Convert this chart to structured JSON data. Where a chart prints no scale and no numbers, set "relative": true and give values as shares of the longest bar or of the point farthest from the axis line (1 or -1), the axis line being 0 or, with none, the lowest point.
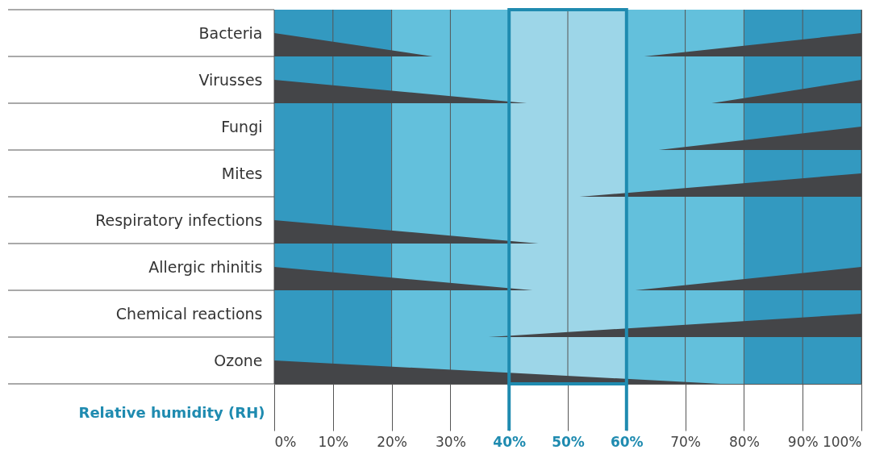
{
  "chart_data": [
    {
      "type": "area",
      "ylabel": "Bacteria",
      "relative": true,
      "x": [
        0,
        27,
        63,
        100
      ],
      "values": [
        1,
        0,
        0,
        1
      ],
      "color": "#444548",
      "xlim": [
        0,
        100
      ],
      "xticks": [
        {
          "value": 0,
          "label": null
        },
        {
          "value": 10,
          "label": null
        },
        {
          "value": 20,
          "label": null
        },
        {
          "value": 30,
          "label": null
        },
        {
          "value": 40,
          "label": null
        },
        {
          "value": 50,
          "label": null
        },
        {
          "value": 60,
          "label": null
        },
        {
          "value": 70,
          "label": null
        },
        {
          "value": 80,
          "label": null
        },
        {
          "value": 90,
          "label": null
        },
        {
          "value": 100,
          "label": null
        }
      ],
      "grid": "x",
      "tick_labels": false,
      "bands": [
        {
          "axis": "x",
          "from": 0,
          "to": 20,
          "color": "#3399c0"
        },
        {
          "axis": "x",
          "from": 20,
          "to": 40,
          "color": "#63c0dc"
        },
        {
          "axis": "x",
          "from": 40,
          "to": 60,
          "color": "#9dd6e8"
        },
        {
          "axis": "x",
          "from": 60,
          "to": 80,
          "color": "#63c0dc"
        },
        {
          "axis": "x",
          "from": 80,
          "to": 100,
          "color": "#3399c0"
        }
      ]
    },
    {
      "type": "area",
      "ylabel": "Virusses",
      "relative": true,
      "x": [
        0,
        43,
        74.5,
        100
      ],
      "values": [
        1,
        0,
        0,
        1
      ],
      "color": "#444548",
      "xlim": [
        0,
        100
      ],
      "xticks": [
        {
          "value": 0,
          "label": null
        },
        {
          "value": 10,
          "label": null
        },
        {
          "value": 20,
          "label": null
        },
        {
          "value": 30,
          "label": null
        },
        {
          "value": 40,
          "label": null
        },
        {
          "value": 50,
          "label": null
        },
        {
          "value": 60,
          "label": null
        },
        {
          "value": 70,
          "label": null
        },
        {
          "value": 80,
          "label": null
        },
        {
          "value": 90,
          "label": null
        },
        {
          "value": 100,
          "label": null
        }
      ],
      "grid": "x",
      "tick_labels": false,
      "bands": [
        {
          "axis": "x",
          "from": 0,
          "to": 20,
          "color": "#3399c0"
        },
        {
          "axis": "x",
          "from": 20,
          "to": 40,
          "color": "#63c0dc"
        },
        {
          "axis": "x",
          "from": 40,
          "to": 60,
          "color": "#9dd6e8"
        },
        {
          "axis": "x",
          "from": 60,
          "to": 80,
          "color": "#63c0dc"
        },
        {
          "axis": "x",
          "from": 80,
          "to": 100,
          "color": "#3399c0"
        }
      ]
    },
    {
      "type": "area",
      "ylabel": "Fungi",
      "relative": true,
      "x": [
        0,
        65.5,
        100
      ],
      "values": [
        0,
        0,
        1
      ],
      "color": "#444548",
      "xlim": [
        0,
        100
      ],
      "xticks": [
        {
          "value": 0,
          "label": null
        },
        {
          "value": 10,
          "label": null
        },
        {
          "value": 20,
          "label": null
        },
        {
          "value": 30,
          "label": null
        },
        {
          "value": 40,
          "label": null
        },
        {
          "value": 50,
          "label": null
        },
        {
          "value": 60,
          "label": null
        },
        {
          "value": 70,
          "label": null
        },
        {
          "value": 80,
          "label": null
        },
        {
          "value": 90,
          "label": null
        },
        {
          "value": 100,
          "label": null
        }
      ],
      "grid": "x",
      "tick_labels": false,
      "bands": [
        {
          "axis": "x",
          "from": 0,
          "to": 20,
          "color": "#3399c0"
        },
        {
          "axis": "x",
          "from": 20,
          "to": 40,
          "color": "#63c0dc"
        },
        {
          "axis": "x",
          "from": 40,
          "to": 60,
          "color": "#9dd6e8"
        },
        {
          "axis": "x",
          "from": 60,
          "to": 80,
          "color": "#63c0dc"
        },
        {
          "axis": "x",
          "from": 80,
          "to": 100,
          "color": "#3399c0"
        }
      ]
    },
    {
      "type": "area",
      "ylabel": "Mites",
      "relative": true,
      "x": [
        0,
        52,
        100
      ],
      "values": [
        0,
        0,
        1
      ],
      "color": "#444548",
      "xlim": [
        0,
        100
      ],
      "xticks": [
        {
          "value": 0,
          "label": null
        },
        {
          "value": 10,
          "label": null
        },
        {
          "value": 20,
          "label": null
        },
        {
          "value": 30,
          "label": null
        },
        {
          "value": 40,
          "label": null
        },
        {
          "value": 50,
          "label": null
        },
        {
          "value": 60,
          "label": null
        },
        {
          "value": 70,
          "label": null
        },
        {
          "value": 80,
          "label": null
        },
        {
          "value": 90,
          "label": null
        },
        {
          "value": 100,
          "label": null
        }
      ],
      "grid": "x",
      "tick_labels": false,
      "bands": [
        {
          "axis": "x",
          "from": 0,
          "to": 20,
          "color": "#3399c0"
        },
        {
          "axis": "x",
          "from": 20,
          "to": 40,
          "color": "#63c0dc"
        },
        {
          "axis": "x",
          "from": 40,
          "to": 60,
          "color": "#9dd6e8"
        },
        {
          "axis": "x",
          "from": 60,
          "to": 80,
          "color": "#63c0dc"
        },
        {
          "axis": "x",
          "from": 80,
          "to": 100,
          "color": "#3399c0"
        }
      ]
    },
    {
      "type": "area",
      "ylabel": "Respiratory infections",
      "relative": true,
      "x": [
        0,
        45,
        100
      ],
      "values": [
        1,
        0,
        0
      ],
      "color": "#444548",
      "xlim": [
        0,
        100
      ],
      "xticks": [
        {
          "value": 0,
          "label": null
        },
        {
          "value": 10,
          "label": null
        },
        {
          "value": 20,
          "label": null
        },
        {
          "value": 30,
          "label": null
        },
        {
          "value": 40,
          "label": null
        },
        {
          "value": 50,
          "label": null
        },
        {
          "value": 60,
          "label": null
        },
        {
          "value": 70,
          "label": null
        },
        {
          "value": 80,
          "label": null
        },
        {
          "value": 90,
          "label": null
        },
        {
          "value": 100,
          "label": null
        }
      ],
      "grid": "x",
      "tick_labels": false,
      "bands": [
        {
          "axis": "x",
          "from": 0,
          "to": 20,
          "color": "#3399c0"
        },
        {
          "axis": "x",
          "from": 20,
          "to": 40,
          "color": "#63c0dc"
        },
        {
          "axis": "x",
          "from": 40,
          "to": 60,
          "color": "#9dd6e8"
        },
        {
          "axis": "x",
          "from": 60,
          "to": 80,
          "color": "#63c0dc"
        },
        {
          "axis": "x",
          "from": 80,
          "to": 100,
          "color": "#3399c0"
        }
      ]
    },
    {
      "type": "area",
      "ylabel": "Allergic rhinitis",
      "relative": true,
      "x": [
        0,
        44,
        61.5,
        100
      ],
      "values": [
        1,
        0,
        0,
        1
      ],
      "color": "#444548",
      "xlim": [
        0,
        100
      ],
      "xticks": [
        {
          "value": 0,
          "label": null
        },
        {
          "value": 10,
          "label": null
        },
        {
          "value": 20,
          "label": null
        },
        {
          "value": 30,
          "label": null
        },
        {
          "value": 40,
          "label": null
        },
        {
          "value": 50,
          "label": null
        },
        {
          "value": 60,
          "label": null
        },
        {
          "value": 70,
          "label": null
        },
        {
          "value": 80,
          "label": null
        },
        {
          "value": 90,
          "label": null
        },
        {
          "value": 100,
          "label": null
        }
      ],
      "grid": "x",
      "tick_labels": false,
      "bands": [
        {
          "axis": "x",
          "from": 0,
          "to": 20,
          "color": "#3399c0"
        },
        {
          "axis": "x",
          "from": 20,
          "to": 40,
          "color": "#63c0dc"
        },
        {
          "axis": "x",
          "from": 40,
          "to": 60,
          "color": "#9dd6e8"
        },
        {
          "axis": "x",
          "from": 60,
          "to": 80,
          "color": "#63c0dc"
        },
        {
          "axis": "x",
          "from": 80,
          "to": 100,
          "color": "#3399c0"
        }
      ]
    },
    {
      "type": "area",
      "ylabel": "Chemical reactions",
      "relative": true,
      "x": [
        0,
        36.5,
        100
      ],
      "values": [
        0,
        0,
        1
      ],
      "color": "#444548",
      "xlim": [
        0,
        100
      ],
      "xticks": [
        {
          "value": 0,
          "label": null
        },
        {
          "value": 10,
          "label": null
        },
        {
          "value": 20,
          "label": null
        },
        {
          "value": 30,
          "label": null
        },
        {
          "value": 40,
          "label": null
        },
        {
          "value": 50,
          "label": null
        },
        {
          "value": 60,
          "label": null
        },
        {
          "value": 70,
          "label": null
        },
        {
          "value": 80,
          "label": null
        },
        {
          "value": 90,
          "label": null
        },
        {
          "value": 100,
          "label": null
        }
      ],
      "grid": "x",
      "tick_labels": false,
      "bands": [
        {
          "axis": "x",
          "from": 0,
          "to": 20,
          "color": "#3399c0"
        },
        {
          "axis": "x",
          "from": 20,
          "to": 40,
          "color": "#63c0dc"
        },
        {
          "axis": "x",
          "from": 40,
          "to": 60,
          "color": "#9dd6e8"
        },
        {
          "axis": "x",
          "from": 60,
          "to": 80,
          "color": "#63c0dc"
        },
        {
          "axis": "x",
          "from": 80,
          "to": 100,
          "color": "#3399c0"
        }
      ]
    },
    {
      "type": "area",
      "ylabel": "Ozone",
      "xlabel": "Relative humidity (RH)",
      "relative": true,
      "x": [
        0,
        76,
        100
      ],
      "values": [
        1,
        0,
        0
      ],
      "color": "#444548",
      "xlim": [
        0,
        100
      ],
      "xticks": [
        {
          "value": 0,
          "label": "0%"
        },
        {
          "value": 10,
          "label": "10%"
        },
        {
          "value": 20,
          "label": "20%"
        },
        {
          "value": 30,
          "label": "30%"
        },
        {
          "value": 40,
          "label": "40%"
        },
        {
          "value": 50,
          "label": "50%"
        },
        {
          "value": 60,
          "label": "60%"
        },
        {
          "value": 70,
          "label": "70%"
        },
        {
          "value": 80,
          "label": "80%"
        },
        {
          "value": 90,
          "label": "90%"
        },
        {
          "value": 100,
          "label": "100%"
        }
      ],
      "grid": "x",
      "tick_labels": "x",
      "bands": [
        {
          "axis": "x",
          "from": 0,
          "to": 20,
          "color": "#3399c0"
        },
        {
          "axis": "x",
          "from": 20,
          "to": 40,
          "color": "#63c0dc"
        },
        {
          "axis": "x",
          "from": 40,
          "to": 60,
          "color": "#9dd6e8"
        },
        {
          "axis": "x",
          "from": 60,
          "to": 80,
          "color": "#63c0dc"
        },
        {
          "axis": "x",
          "from": 80,
          "to": 100,
          "color": "#3399c0"
        }
      ]
    }
  ]
}
